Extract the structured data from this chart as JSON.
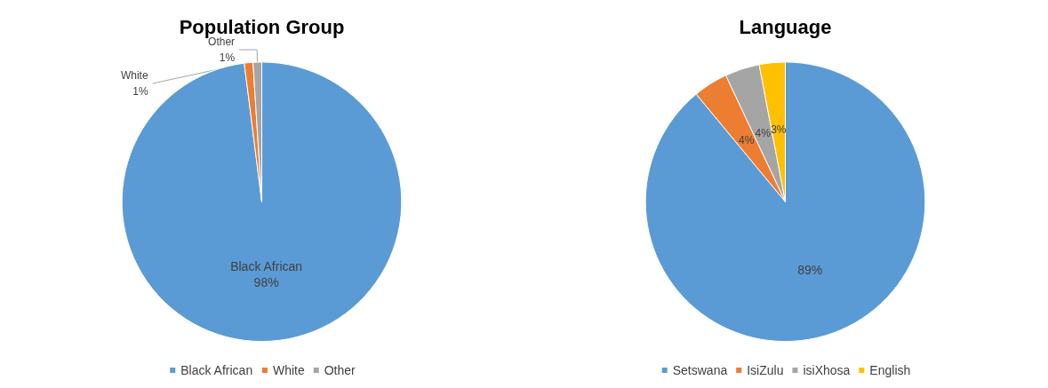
{
  "chart_data": [
    {
      "type": "pie",
      "title": "Population Group",
      "categories": [
        "Black African",
        "White",
        "Other"
      ],
      "values": [
        98,
        1,
        1
      ],
      "colors": [
        "#5b9bd5",
        "#ed7d31",
        "#a5a5a5"
      ],
      "value_labels": [
        "Black African\n98%",
        "White\n1%",
        "Other\n1%"
      ],
      "legend": "bottom"
    },
    {
      "type": "pie",
      "title": "Language",
      "categories": [
        "Setswana",
        "IsiZulu",
        "isiXhosa",
        "English"
      ],
      "values": [
        89,
        4,
        4,
        3
      ],
      "colors": [
        "#5b9bd5",
        "#ed7d31",
        "#a5a5a5",
        "#ffc000"
      ],
      "value_labels": [
        "89%",
        "4%",
        "4%",
        "3%"
      ],
      "legend": "bottom"
    }
  ]
}
